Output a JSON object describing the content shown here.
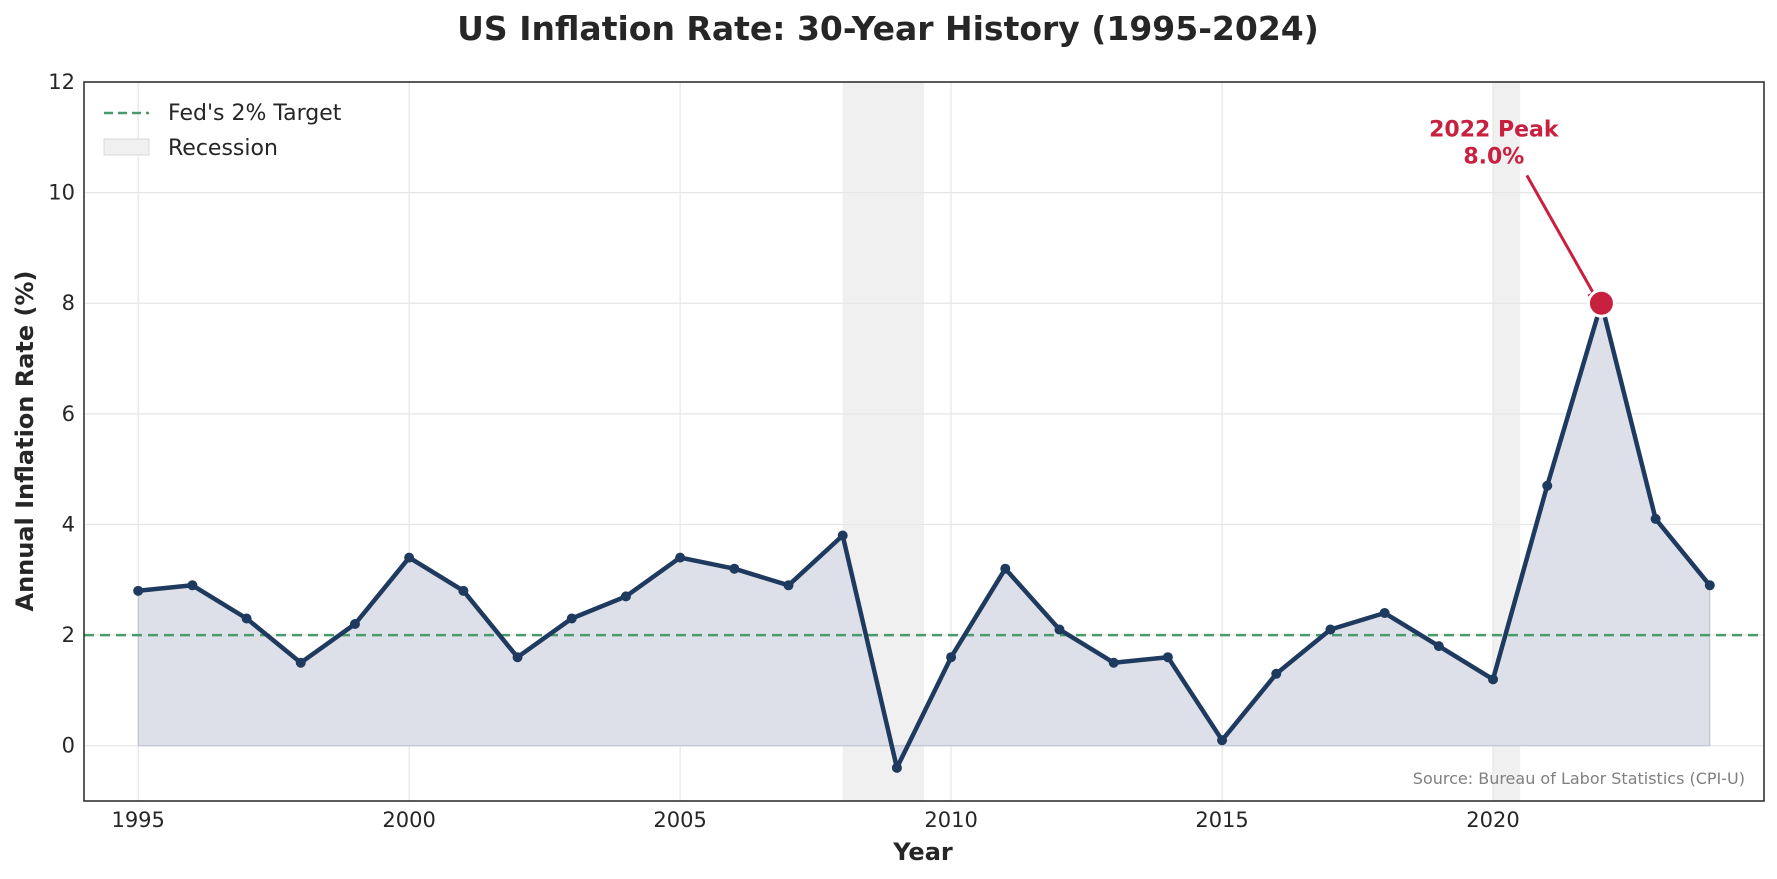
{
  "chart_data": {
    "type": "line",
    "title": "US Inflation Rate: 30-Year History (1995-2024)",
    "xlabel": "Year",
    "ylabel": "Annual Inflation Rate (%)",
    "xlim": [
      1994,
      2025
    ],
    "ylim": [
      -1,
      12
    ],
    "xticks": [
      1995,
      2000,
      2005,
      2010,
      2015,
      2020
    ],
    "yticks": [
      0,
      2,
      4,
      6,
      8,
      10,
      12
    ],
    "grid": true,
    "legend_position": "top-left",
    "series": [
      {
        "name": "",
        "color": "#1f3a5f",
        "fill_color": "#dde0e8",
        "x": [
          1995,
          1996,
          1997,
          1998,
          1999,
          2000,
          2001,
          2002,
          2003,
          2004,
          2005,
          2006,
          2007,
          2008,
          2009,
          2010,
          2011,
          2012,
          2013,
          2014,
          2015,
          2016,
          2017,
          2018,
          2019,
          2020,
          2021,
          2022,
          2023,
          2024
        ],
        "values": [
          2.8,
          2.9,
          2.3,
          1.5,
          2.2,
          3.4,
          2.8,
          1.6,
          2.3,
          2.7,
          3.4,
          3.2,
          2.9,
          3.8,
          -0.4,
          1.6,
          3.2,
          2.1,
          1.5,
          1.6,
          0.1,
          1.3,
          2.1,
          2.4,
          1.8,
          1.2,
          4.7,
          8.0,
          4.1,
          2.9
        ]
      }
    ],
    "reference_line": {
      "label": "Fed's 2% Target",
      "value": 2,
      "color": "#4a9a6e"
    },
    "recessions": {
      "label": "Recession",
      "color": "#f0f0f0",
      "periods": [
        [
          2008,
          2009.5
        ],
        [
          2020,
          2020.5
        ]
      ]
    },
    "annotation": {
      "text_line1": "2022 Peak",
      "text_line2": "8.0%",
      "x": 2022,
      "y": 8.0,
      "text_x": 2019,
      "text_y": 10.8,
      "color": "#c8203f"
    },
    "source": "Source: Bureau of Labor Statistics (CPI-U)"
  }
}
